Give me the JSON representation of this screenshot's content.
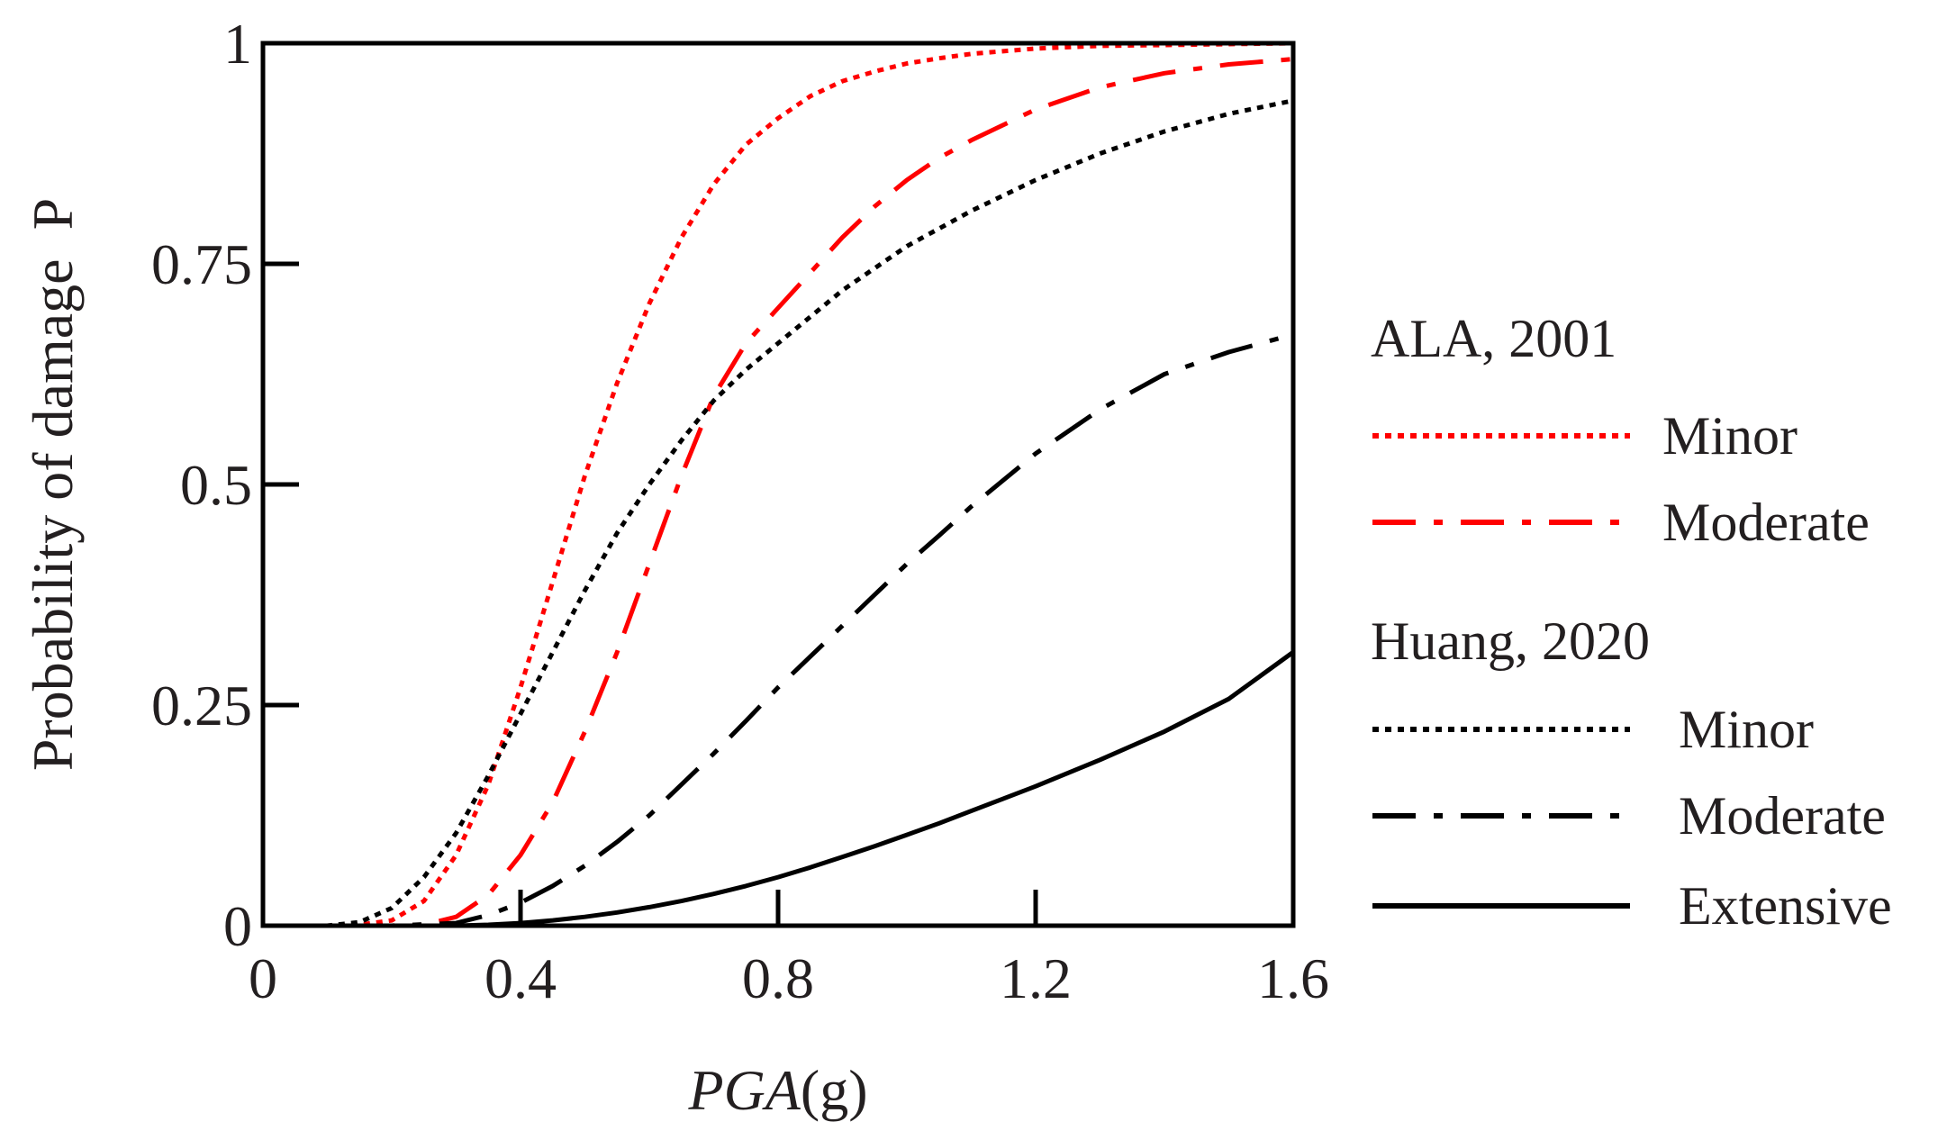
{
  "chart_data": {
    "type": "line",
    "title": "",
    "xlabel": {
      "italic": "PGA",
      "unit": "(g)"
    },
    "ylabel": "Probability of damage  P",
    "xlim": [
      0,
      1.6
    ],
    "ylim": [
      0,
      1
    ],
    "xticks": [
      0,
      0.4,
      0.8,
      1.2,
      1.6
    ],
    "xtick_labels": [
      "0",
      "0.4",
      "0.8",
      "1.2",
      "1.6"
    ],
    "yticks": [
      0,
      0.25,
      0.5,
      0.75,
      1
    ],
    "ytick_labels": [
      "0",
      "0.25",
      "0.5",
      "0.75",
      "1"
    ],
    "grid": false,
    "legend_position": "right",
    "legend_groups": [
      {
        "title": "ALA, 2001",
        "entries": [
          "Minor",
          "Moderate"
        ]
      },
      {
        "title": "Huang, 2020",
        "entries": [
          "Minor",
          "Moderate",
          "Extensive"
        ]
      }
    ],
    "colors": {
      "red": "#ff0000",
      "black": "#000000",
      "axis": "#000000",
      "text": "#231f20"
    },
    "series": [
      {
        "group": "ALA, 2001",
        "name": "Minor",
        "color": "red",
        "style": "dotted",
        "x": [
          0,
          0.1,
          0.15,
          0.2,
          0.25,
          0.3,
          0.35,
          0.4,
          0.45,
          0.5,
          0.55,
          0.6,
          0.65,
          0.7,
          0.75,
          0.8,
          0.85,
          0.9,
          0.95,
          1.0,
          1.05,
          1.1,
          1.2,
          1.3,
          1.4,
          1.5,
          1.6
        ],
        "y": [
          0,
          0,
          0.001,
          0.006,
          0.028,
          0.08,
          0.16,
          0.27,
          0.39,
          0.51,
          0.615,
          0.705,
          0.78,
          0.84,
          0.885,
          0.915,
          0.94,
          0.957,
          0.968,
          0.977,
          0.983,
          0.988,
          0.994,
          0.997,
          0.998,
          0.999,
          1.0
        ]
      },
      {
        "group": "ALA, 2001",
        "name": "Moderate",
        "color": "red",
        "style": "dashdot",
        "x": [
          0,
          0.1,
          0.2,
          0.25,
          0.3,
          0.35,
          0.4,
          0.45,
          0.5,
          0.55,
          0.6,
          0.65,
          0.7,
          0.75,
          0.8,
          0.85,
          0.9,
          0.95,
          1.0,
          1.05,
          1.1,
          1.2,
          1.3,
          1.4,
          1.5,
          1.6
        ],
        "y": [
          0,
          0,
          0,
          0.001,
          0.01,
          0.035,
          0.08,
          0.14,
          0.22,
          0.31,
          0.41,
          0.51,
          0.6,
          0.66,
          0.7,
          0.74,
          0.78,
          0.815,
          0.845,
          0.87,
          0.89,
          0.925,
          0.95,
          0.966,
          0.976,
          0.982
        ]
      },
      {
        "group": "Huang, 2020",
        "name": "Minor",
        "color": "black",
        "style": "dotted",
        "x": [
          0,
          0.1,
          0.15,
          0.2,
          0.25,
          0.3,
          0.35,
          0.4,
          0.45,
          0.5,
          0.55,
          0.6,
          0.65,
          0.7,
          0.75,
          0.8,
          0.85,
          0.9,
          0.95,
          1.0,
          1.05,
          1.1,
          1.2,
          1.3,
          1.4,
          1.5,
          1.6
        ],
        "y": [
          0,
          0,
          0.004,
          0.02,
          0.055,
          0.105,
          0.17,
          0.24,
          0.31,
          0.38,
          0.445,
          0.5,
          0.55,
          0.595,
          0.63,
          0.66,
          0.69,
          0.72,
          0.745,
          0.77,
          0.79,
          0.81,
          0.845,
          0.875,
          0.9,
          0.92,
          0.935
        ]
      },
      {
        "group": "Huang, 2020",
        "name": "Moderate",
        "color": "black",
        "style": "dashdot",
        "x": [
          0,
          0.2,
          0.3,
          0.35,
          0.4,
          0.45,
          0.5,
          0.55,
          0.6,
          0.65,
          0.7,
          0.75,
          0.8,
          0.85,
          0.9,
          0.95,
          1.0,
          1.05,
          1.1,
          1.2,
          1.3,
          1.4,
          1.5,
          1.6
        ],
        "y": [
          0,
          0,
          0.003,
          0.012,
          0.026,
          0.045,
          0.068,
          0.095,
          0.125,
          0.16,
          0.195,
          0.232,
          0.27,
          0.305,
          0.34,
          0.375,
          0.41,
          0.442,
          0.475,
          0.535,
          0.585,
          0.625,
          0.65,
          0.67
        ]
      },
      {
        "group": "Huang, 2020",
        "name": "Extensive",
        "color": "black",
        "style": "solid",
        "x": [
          0,
          0.3,
          0.35,
          0.4,
          0.45,
          0.5,
          0.55,
          0.6,
          0.65,
          0.7,
          0.75,
          0.8,
          0.85,
          0.9,
          0.95,
          1.0,
          1.05,
          1.1,
          1.2,
          1.3,
          1.4,
          1.5,
          1.6
        ],
        "y": [
          0,
          0,
          0.001,
          0.003,
          0.006,
          0.01,
          0.015,
          0.021,
          0.028,
          0.036,
          0.045,
          0.055,
          0.066,
          0.078,
          0.09,
          0.103,
          0.116,
          0.13,
          0.158,
          0.188,
          0.22,
          0.257,
          0.31
        ]
      }
    ]
  }
}
